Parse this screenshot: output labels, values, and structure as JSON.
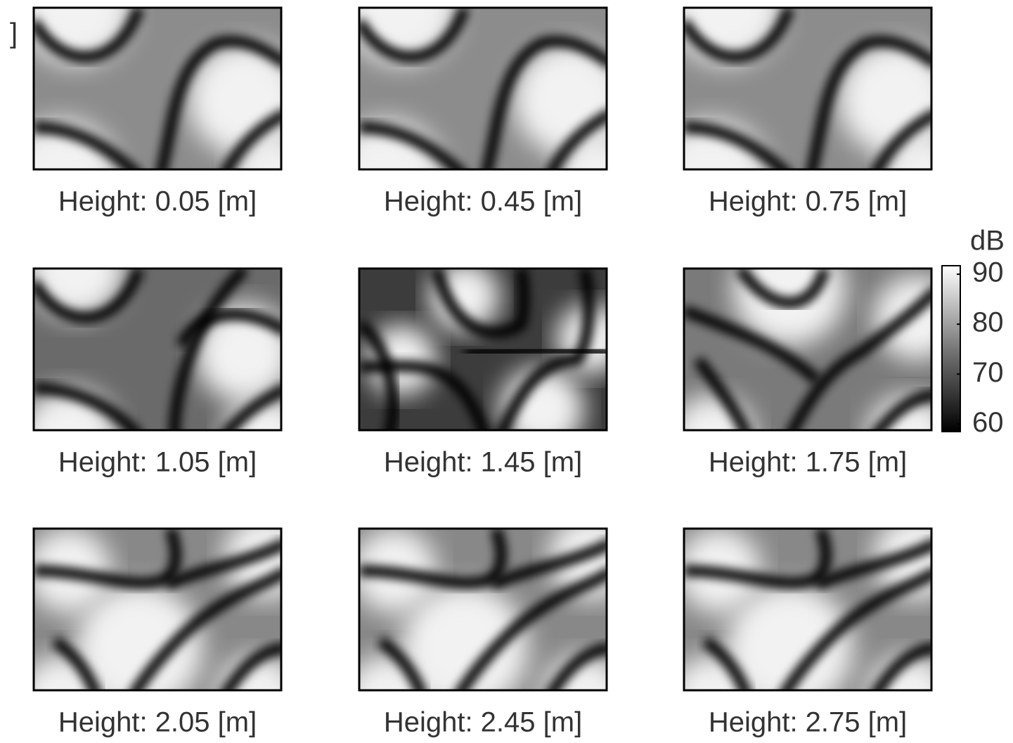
{
  "chart_data": {
    "type": "heatmap-grid",
    "fragment": "]",
    "panels": [
      {
        "title": "Height: 0.05 [m]"
      },
      {
        "title": "Height: 0.45 [m]"
      },
      {
        "title": "Height: 0.75 [m]"
      },
      {
        "title": "Height: 1.05 [m]"
      },
      {
        "title": "Height: 1.45 [m]"
      },
      {
        "title": "Height: 1.75 [m]"
      },
      {
        "title": "Height: 2.05 [m]"
      },
      {
        "title": "Height: 2.45 [m]"
      },
      {
        "title": "Height: 2.75 [m]"
      }
    ],
    "colorbar": {
      "label": "dB",
      "ylim": [
        58.5,
        91.7
      ],
      "yticks": [
        60,
        70,
        80,
        90
      ]
    }
  }
}
